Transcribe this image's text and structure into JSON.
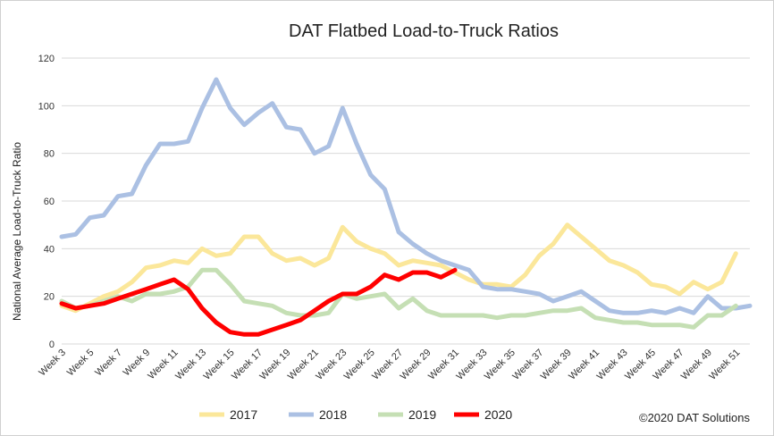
{
  "chart_data": {
    "type": "line",
    "title": "DAT Flatbed Load-to-Truck Ratios",
    "xlabel": "",
    "ylabel": "National Average Load-to-Truck Ratio",
    "ylim": [
      0,
      120
    ],
    "yticks": [
      0,
      20,
      40,
      60,
      80,
      100,
      120
    ],
    "grid": "horizontal",
    "legend_position": "bottom",
    "x": [
      "Week 3",
      "Week 4",
      "Week 5",
      "Week 6",
      "Week 7",
      "Week 8",
      "Week 9",
      "Week 10",
      "Week 11",
      "Week 12",
      "Week 13",
      "Week 14",
      "Week 15",
      "Week 16",
      "Week 17",
      "Week 18",
      "Week 19",
      "Week 20",
      "Week 21",
      "Week 22",
      "Week 23",
      "Week 24",
      "Week 25",
      "Week 26",
      "Week 27",
      "Week 28",
      "Week 29",
      "Week 30",
      "Week 31",
      "Week 32",
      "Week 33",
      "Week 34",
      "Week 35",
      "Week 36",
      "Week 37",
      "Week 38",
      "Week 39",
      "Week 40",
      "Week 41",
      "Week 42",
      "Week 43",
      "Week 44",
      "Week 45",
      "Week 46",
      "Week 47",
      "Week 48",
      "Week 49",
      "Week 50",
      "Week 51",
      "Week 52"
    ],
    "xtick_labels": [
      "Week 3",
      "Week 5",
      "Week 7",
      "Week 9",
      "Week 11",
      "Week 13",
      "Week 15",
      "Week 17",
      "Week 19",
      "Week 21",
      "Week 23",
      "Week 25",
      "Week 27",
      "Week 29",
      "Week 31",
      "Week 33",
      "Week 35",
      "Week 37",
      "Week 39",
      "Week 41",
      "Week 43",
      "Week 45",
      "Week 47",
      "Week 49",
      "Week 51"
    ],
    "series": [
      {
        "name": "2017",
        "color": "#fbe79a",
        "values": [
          16,
          14,
          17,
          20,
          22,
          26,
          32,
          33,
          35,
          34,
          40,
          37,
          38,
          45,
          45,
          38,
          35,
          36,
          33,
          36,
          49,
          43,
          40,
          38,
          33,
          35,
          34,
          33,
          30,
          27,
          25,
          25,
          24,
          29,
          37,
          42,
          50,
          45,
          40,
          35,
          33,
          30,
          25,
          24,
          21,
          26,
          23,
          26,
          38,
          null
        ]
      },
      {
        "name": "2018",
        "color": "#abc0e3",
        "values": [
          45,
          46,
          53,
          54,
          62,
          63,
          75,
          84,
          84,
          85,
          99,
          111,
          99,
          92,
          97,
          101,
          91,
          90,
          80,
          83,
          99,
          84,
          71,
          65,
          47,
          42,
          38,
          35,
          33,
          31,
          24,
          23,
          23,
          22,
          21,
          18,
          20,
          22,
          18,
          14,
          13,
          13,
          14,
          13,
          15,
          13,
          20,
          15,
          15,
          16
        ]
      },
      {
        "name": "2019",
        "color": "#c5dfb4",
        "values": [
          18,
          15,
          16,
          18,
          20,
          18,
          21,
          21,
          22,
          24,
          31,
          31,
          25,
          18,
          17,
          16,
          13,
          12,
          12,
          13,
          21,
          19,
          20,
          21,
          15,
          19,
          14,
          12,
          12,
          12,
          12,
          11,
          12,
          12,
          13,
          14,
          14,
          15,
          11,
          10,
          9,
          9,
          8,
          8,
          8,
          7,
          12,
          12,
          16,
          null
        ]
      },
      {
        "name": "2020",
        "color": "#ff0000",
        "values": [
          17,
          15,
          16,
          17,
          19,
          21,
          23,
          25,
          27,
          23,
          15,
          9,
          5,
          4,
          4,
          6,
          8,
          10,
          14,
          18,
          21,
          21,
          24,
          29,
          27,
          30,
          30,
          28,
          31,
          null,
          null,
          null,
          null,
          null,
          null,
          null,
          null,
          null,
          null,
          null,
          null,
          null,
          null,
          null,
          null,
          null,
          null,
          null,
          null,
          null
        ]
      }
    ],
    "annotation": "©2020 DAT Solutions"
  }
}
